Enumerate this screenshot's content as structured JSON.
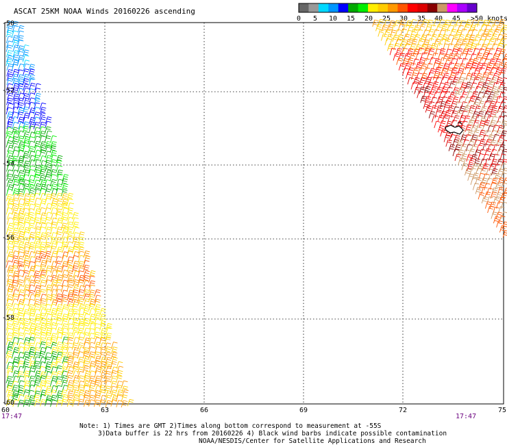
{
  "title": "ASCAT 25KM NOAA Winds 20160226 ascending",
  "legend": {
    "colors": [
      "#666666",
      "#999999",
      "#00d8ff",
      "#0096ff",
      "#0000ff",
      "#00aa00",
      "#00ee00",
      "#ffee00",
      "#ffcc00",
      "#ff9900",
      "#ff5500",
      "#ff0000",
      "#dd0000",
      "#880000",
      "#cc9966",
      "#ff00ff",
      "#aa00ff",
      "#6600cc"
    ],
    "labels": [
      "0",
      "5",
      "10",
      "15",
      "20",
      "25",
      "30",
      "35",
      "40",
      "45",
      ">50 knots"
    ]
  },
  "axes": {
    "lat_labels": [
      "-50",
      "-52",
      "-54",
      "-56",
      "-58",
      "-60"
    ],
    "lon_labels": [
      "60",
      "63",
      "66",
      "69",
      "72",
      "75"
    ]
  },
  "times": {
    "left": "17:47",
    "right": "17:47"
  },
  "notes": [
    "Note: 1) Times are GMT 2)Times along bottom correspond to measurement at -55S",
    "3)Data buffer is 22 hrs from 20160226 4) Black wind barbs indicate possible contamination",
    "NOAA/NESDIS/Center for Satellite Applications and Research"
  ]
}
